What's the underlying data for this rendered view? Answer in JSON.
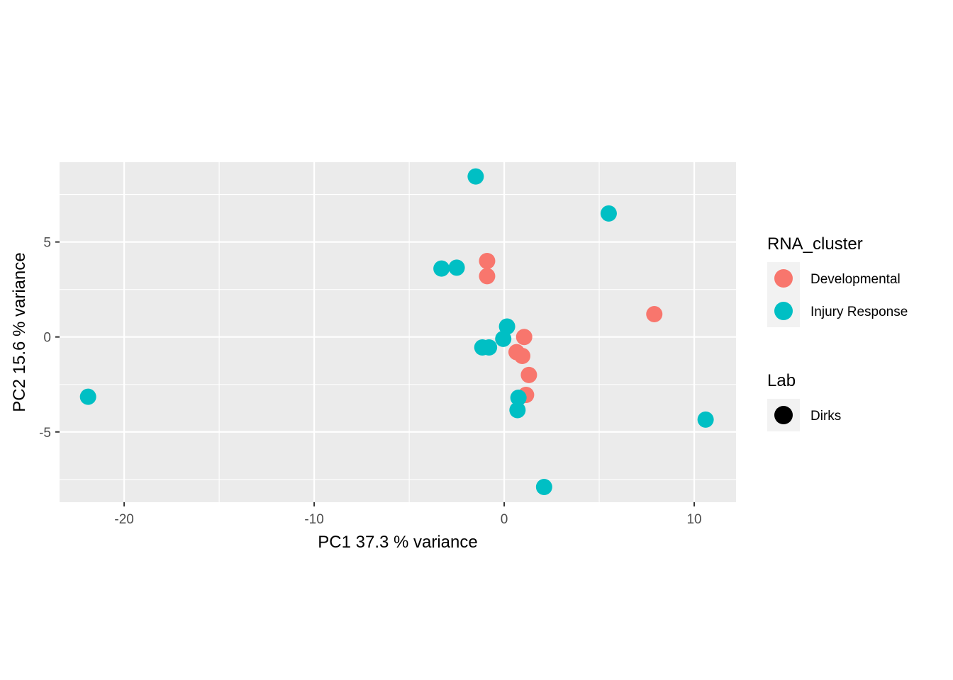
{
  "chart_data": {
    "type": "scatter",
    "xlabel": "PC1 37.3 % variance",
    "ylabel": "PC2 15.6 % variance",
    "xlim": [
      -23.4,
      12.2
    ],
    "ylim": [
      -8.7,
      9.2
    ],
    "x_ticks": [
      -20,
      -10,
      0,
      10
    ],
    "x_tick_labels": [
      "-20",
      "-10",
      "0",
      "10"
    ],
    "y_ticks": [
      -5,
      0,
      5
    ],
    "y_tick_labels": [
      "-5",
      "0",
      "5"
    ],
    "grid": true,
    "legend_position": "right",
    "legends": [
      {
        "title": "RNA_cluster",
        "items": [
          {
            "label": "Developmental",
            "color": "#F8766D"
          },
          {
            "label": "Injury Response",
            "color": "#00BFC4"
          }
        ]
      },
      {
        "title": "Lab",
        "items": [
          {
            "label": "Dirks",
            "color": "#000000"
          }
        ]
      }
    ],
    "series": [
      {
        "name": "Developmental",
        "color": "#F8766D",
        "points": [
          {
            "x": -0.9,
            "y": 4.0
          },
          {
            "x": -0.9,
            "y": 3.2
          },
          {
            "x": 7.9,
            "y": 1.2
          },
          {
            "x": 1.05,
            "y": 0.0
          },
          {
            "x": 0.65,
            "y": -0.8
          },
          {
            "x": 0.95,
            "y": -1.0
          },
          {
            "x": 1.3,
            "y": -2.0
          },
          {
            "x": 1.15,
            "y": -3.05
          }
        ]
      },
      {
        "name": "Injury Response",
        "color": "#00BFC4",
        "points": [
          {
            "x": -1.5,
            "y": 8.45
          },
          {
            "x": 5.5,
            "y": 6.5
          },
          {
            "x": -3.3,
            "y": 3.6
          },
          {
            "x": -2.5,
            "y": 3.65
          },
          {
            "x": 0.15,
            "y": 0.55
          },
          {
            "x": -0.05,
            "y": -0.1
          },
          {
            "x": -1.15,
            "y": -0.55
          },
          {
            "x": -0.8,
            "y": -0.55
          },
          {
            "x": 0.75,
            "y": -3.2
          },
          {
            "x": 0.7,
            "y": -3.85
          },
          {
            "x": -21.9,
            "y": -3.15
          },
          {
            "x": 10.6,
            "y": -4.35
          },
          {
            "x": 2.1,
            "y": -7.9
          }
        ]
      }
    ]
  }
}
